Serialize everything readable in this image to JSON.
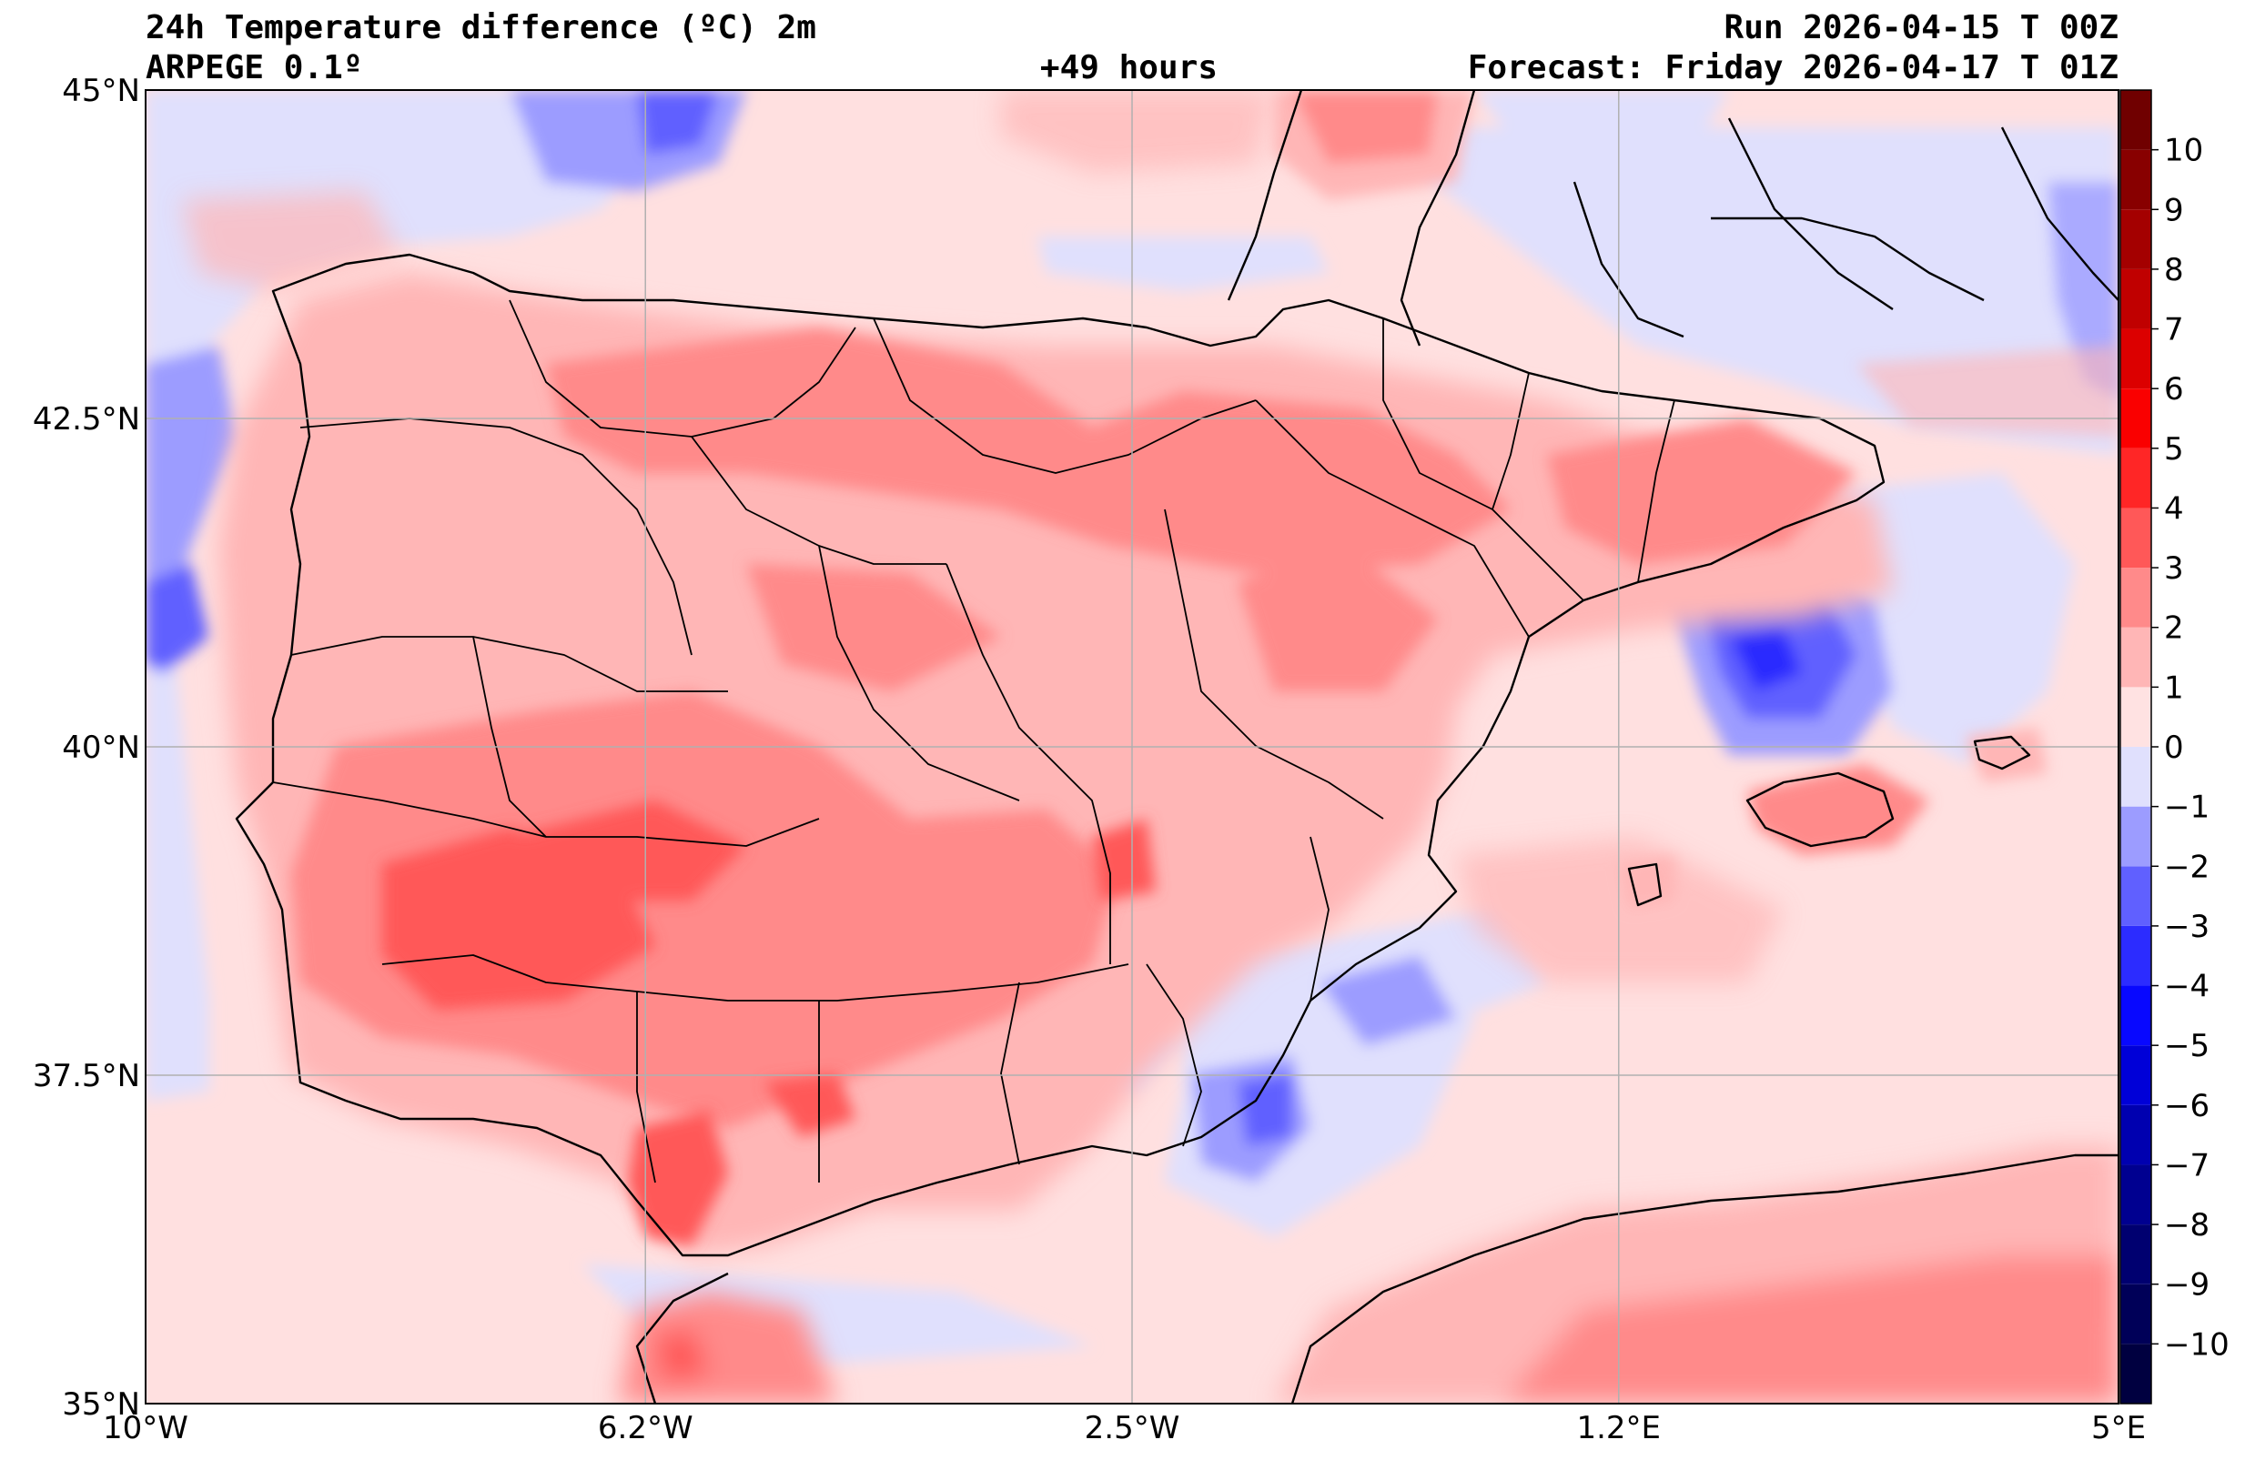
{
  "header": {
    "title_left": "24h Temperature difference (ºC) 2m",
    "subtitle_left": "ARPEGE 0.1º",
    "lead_time": "+49 hours",
    "run": "Run 2026-04-15 T 00Z",
    "forecast": "Forecast: Friday 2026-04-17 T 01Z"
  },
  "map": {
    "lon_range": [
      -10,
      5
    ],
    "lat_range": [
      35,
      45
    ],
    "lon_ticks": [
      {
        "value": -10,
        "label": "10°W"
      },
      {
        "value": -6.2,
        "label": "6.2°W"
      },
      {
        "value": -2.5,
        "label": "2.5°W"
      },
      {
        "value": 1.2,
        "label": "1.2°E"
      },
      {
        "value": 5,
        "label": "5°E"
      }
    ],
    "lat_ticks": [
      {
        "value": 35,
        "label": "35°N"
      },
      {
        "value": 37.5,
        "label": "37.5°N"
      },
      {
        "value": 40,
        "label": "40°N"
      },
      {
        "value": 42.5,
        "label": "42.5°N"
      },
      {
        "value": 45,
        "label": "45°N"
      }
    ],
    "grid": true,
    "colors": {
      "sea_background": "#ffe0e0",
      "land_background": "#ff9a9a",
      "grid": "#b0b0b0",
      "border": "#000000"
    }
  },
  "colorbar": {
    "range": [
      -11,
      11
    ],
    "tick_labels": [
      "−10",
      "−9",
      "−8",
      "−7",
      "−6",
      "−5",
      "−4",
      "−3",
      "−2",
      "−1",
      "0",
      "1",
      "2",
      "3",
      "4",
      "5",
      "6",
      "7",
      "8",
      "9",
      "10"
    ],
    "tick_values": [
      -10,
      -9,
      -8,
      -7,
      -6,
      -5,
      -4,
      -3,
      -2,
      -1,
      0,
      1,
      2,
      3,
      4,
      5,
      6,
      7,
      8,
      9,
      10
    ],
    "levels": [
      {
        "from": -11,
        "to": -10,
        "color": "#000040"
      },
      {
        "from": -10,
        "to": -9,
        "color": "#000058"
      },
      {
        "from": -9,
        "to": -8,
        "color": "#000070"
      },
      {
        "from": -8,
        "to": -7,
        "color": "#000090"
      },
      {
        "from": -7,
        "to": -6,
        "color": "#0000b0"
      },
      {
        "from": -6,
        "to": -5,
        "color": "#0000d8"
      },
      {
        "from": -5,
        "to": -4,
        "color": "#0808ff"
      },
      {
        "from": -4,
        "to": -3,
        "color": "#2c2cff"
      },
      {
        "from": -3,
        "to": -2,
        "color": "#6060ff"
      },
      {
        "from": -2,
        "to": -1,
        "color": "#9c9cff"
      },
      {
        "from": -1,
        "to": 0,
        "color": "#e0e0fd"
      },
      {
        "from": 0,
        "to": 1,
        "color": "#ffe2e2"
      },
      {
        "from": 1,
        "to": 2,
        "color": "#ffb6b6"
      },
      {
        "from": 2,
        "to": 3,
        "color": "#ff8a8a"
      },
      {
        "from": 3,
        "to": 4,
        "color": "#ff5858"
      },
      {
        "from": 4,
        "to": 5,
        "color": "#ff2626"
      },
      {
        "from": 5,
        "to": 6,
        "color": "#fa0000"
      },
      {
        "from": 6,
        "to": 7,
        "color": "#dc0000"
      },
      {
        "from": 7,
        "to": 8,
        "color": "#c00000"
      },
      {
        "from": 8,
        "to": 9,
        "color": "#a40000"
      },
      {
        "from": 9,
        "to": 10,
        "color": "#880000"
      },
      {
        "from": 10,
        "to": 11,
        "color": "#700000"
      }
    ]
  }
}
